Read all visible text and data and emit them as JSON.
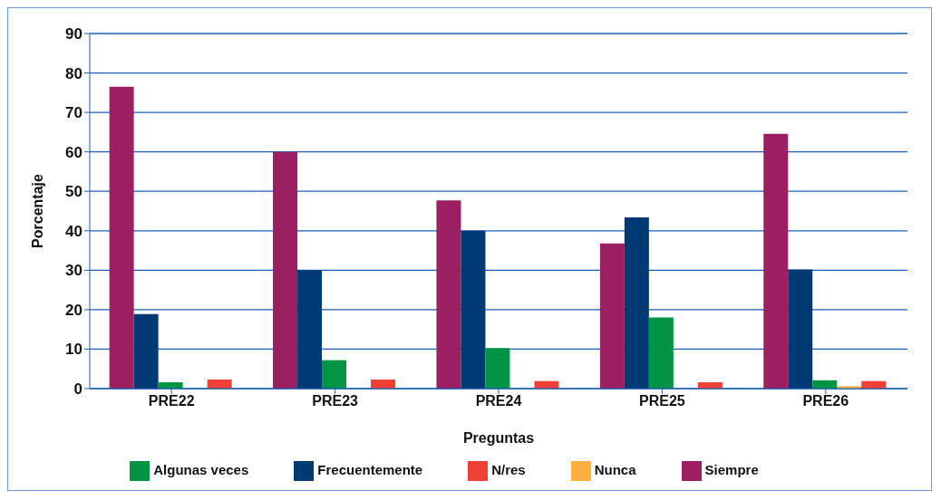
{
  "chart_data": {
    "type": "bar",
    "xlabel": "Preguntas",
    "ylabel": "Porcentaje",
    "categories": [
      "PRE22",
      "PRE23",
      "PRE24",
      "PRE25",
      "PRE26"
    ],
    "series": [
      {
        "name": "Siempre",
        "color": "#9c1f62",
        "values": [
          76.5,
          60,
          47.7,
          36.8,
          64.6
        ]
      },
      {
        "name": "Frecuentemente",
        "color": "#003a74",
        "values": [
          18.9,
          30,
          40,
          43.4,
          30.2
        ]
      },
      {
        "name": "Algunas veces",
        "color": "#009444",
        "values": [
          1.6,
          7.2,
          10.3,
          18,
          2.1
        ]
      },
      {
        "name": "Nunca",
        "color": "#fbb040",
        "values": [
          0,
          0,
          0,
          0,
          0.6
        ]
      },
      {
        "name": "N/res",
        "color": "#ef4136",
        "values": [
          2.3,
          2.3,
          1.9,
          1.6,
          1.9
        ]
      }
    ],
    "ylim": [
      0,
      90
    ],
    "yticks": [
      0,
      10,
      20,
      30,
      40,
      50,
      60,
      70,
      80,
      90
    ],
    "grid": "y",
    "legend": "bottom"
  }
}
